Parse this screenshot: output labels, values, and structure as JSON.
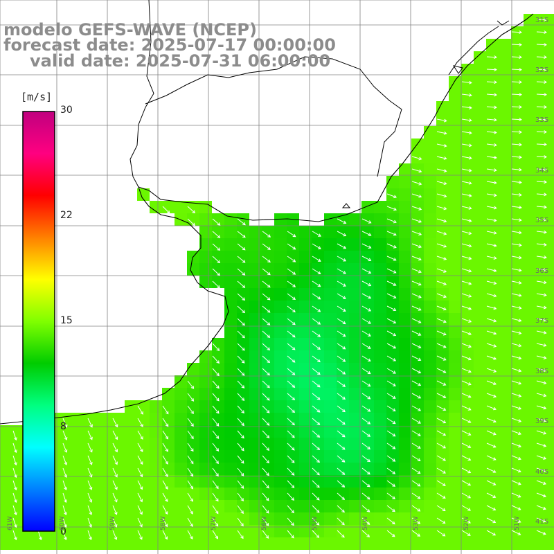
{
  "header": {
    "title": "modelo GEFS-WAVE (NCEP)",
    "forecast": "forecast date: 2025-07-17 00:00:00",
    "valid": "valid date: 2025-07-31 06:00:00"
  },
  "colorbar": {
    "units": "[m/s]",
    "min": 0,
    "max": 30,
    "ticks": [
      "30",
      "22",
      "15",
      "8",
      "0"
    ],
    "tick_values": [
      30,
      22.5,
      15,
      7.5,
      0
    ],
    "colors": [
      "#0000ff",
      "#0080ff",
      "#00ffff",
      "#00ff80",
      "#00cc00",
      "#80ff00",
      "#ffff00",
      "#ff8000",
      "#ff0000",
      "#ff0080",
      "#c0007f"
    ]
  },
  "grid": {
    "lon_labels": [
      "61W",
      "60W",
      "59W",
      "58W",
      "57W",
      "56W",
      "55W",
      "54W",
      "53W",
      "52W",
      "51W"
    ],
    "lat_labels": [
      "31S",
      "32S",
      "33S",
      "34S",
      "35S",
      "36S",
      "37S",
      "38S",
      "39S",
      "40S",
      "41S"
    ]
  },
  "colors": {
    "land": "#ffffff",
    "coastline": "#000000",
    "gridline": "#808080",
    "arrow": "#ffffff"
  }
}
